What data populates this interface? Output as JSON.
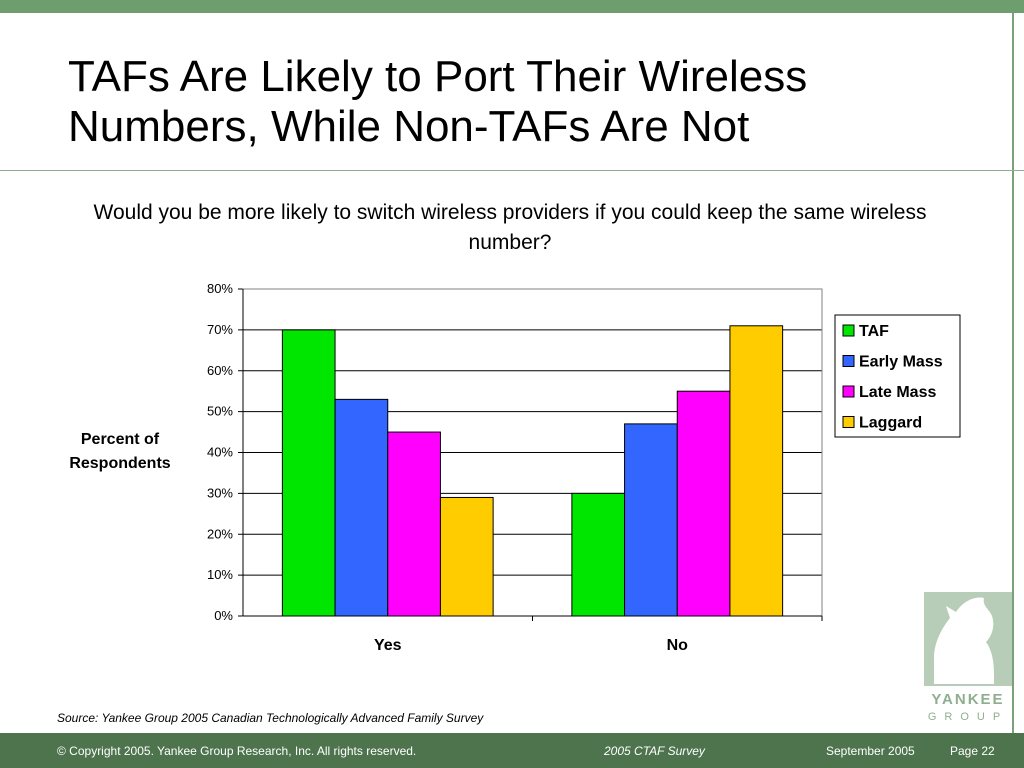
{
  "slide": {
    "title": "TAFs Are Likely to Port Their Wireless Numbers, While Non-TAFs Are Not",
    "subtitle": "Would you be more likely to switch wireless providers if you could keep the same wireless number?",
    "source": "Source: Yankee Group 2005 Canadian Technologically Advanced Family Survey"
  },
  "footer": {
    "copyright": "© Copyright 2005. Yankee Group Research, Inc.  All rights reserved.",
    "survey": "2005 CTAF Survey",
    "date": "September 2005",
    "page": "Page 22"
  },
  "logo": {
    "line1": "YANKEE",
    "line2": "GROUP",
    "icon": "knight-chess-piece-icon"
  },
  "colors": {
    "brand_green": "#6e9e6e",
    "footer_green": "#4e744e"
  },
  "chart_data": {
    "type": "bar",
    "title": "",
    "xlabel": "",
    "ylabel": "Percent of Respondents",
    "ylim": [
      0,
      80
    ],
    "y_ticks": [
      "0%",
      "10%",
      "20%",
      "30%",
      "40%",
      "50%",
      "60%",
      "70%",
      "80%"
    ],
    "categories": [
      "Yes",
      "No"
    ],
    "series": [
      {
        "name": "TAF",
        "color": "#00e600",
        "values": [
          70,
          30
        ]
      },
      {
        "name": "Early Mass",
        "color": "#3366ff",
        "values": [
          53,
          47
        ]
      },
      {
        "name": "Late Mass",
        "color": "#ff00ff",
        "values": [
          45,
          55
        ]
      },
      {
        "name": "Laggard",
        "color": "#ffcc00",
        "values": [
          29,
          71
        ]
      }
    ],
    "grid": true,
    "legend_position": "right"
  }
}
